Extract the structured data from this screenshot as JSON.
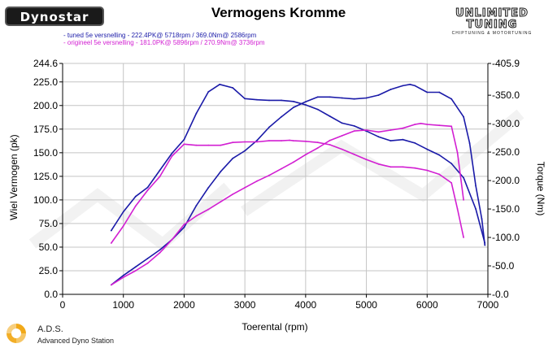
{
  "header": {
    "title": "Vermogens Kromme",
    "dyno_logo": "Dynostar",
    "tuner_logo_line1": "UNLIMITED",
    "tuner_logo_line2": "TUNING",
    "tuner_logo_tagline": "CHIPTUNING & MOTORTUNING"
  },
  "legend": {
    "line1": "- tuned 5e versnelling  - 222.4PK@ 5718rpm / 369.0Nm@ 2586rpm",
    "line2": "- origineel 5e versnelling  - 181.0PK@ 5896rpm / 270.9Nm@ 3736rpm"
  },
  "footer": {
    "brand": "A.D.S.",
    "subtitle": "Advanced Dyno Station"
  },
  "colors": {
    "tuned": "#1a1aa8",
    "original": "#d21fd2",
    "grid": "#c4c4c4",
    "axis": "#000000"
  },
  "chart_data": {
    "type": "line",
    "xlabel": "Toerental (rpm)",
    "ylabel": "Wiel Vermogen (pk)",
    "y2label": "Torque (Nm)",
    "xlim": [
      0,
      7000
    ],
    "ylim": [
      0,
      244.6
    ],
    "y2lim": [
      0,
      405.9
    ],
    "x_ticks": [
      0,
      1000,
      2000,
      3000,
      4000,
      5000,
      6000,
      7000
    ],
    "y_ticks": [
      0.0,
      25.0,
      50.0,
      75.0,
      100.0,
      125.0,
      150.0,
      175.0,
      200.0,
      225.0,
      244.6
    ],
    "y_tick_labels": [
      "0.0",
      "25.0",
      "50.0",
      "75.0",
      "100.0",
      "125.0",
      "150.0",
      "175.0",
      "200.0",
      "225.0",
      "244.6"
    ],
    "y2_ticks": [
      0.0,
      50.0,
      100.0,
      150.0,
      200.0,
      250.0,
      300.0,
      350.0,
      405.9
    ],
    "y2_tick_labels": [
      "-0.0",
      "-50.0",
      "-100.0",
      "-150.0",
      "-200.0",
      "-250.0",
      "-300.0",
      "-350.0",
      "-405.9"
    ],
    "grid": true,
    "series": [
      {
        "name": "tuned 5e versnelling",
        "measure": "power",
        "axis": "left",
        "color": "#1a1aa8",
        "x": [
          800,
          1000,
          1200,
          1400,
          1600,
          1800,
          2000,
          2200,
          2400,
          2600,
          2800,
          3000,
          3200,
          3400,
          3600,
          3800,
          4000,
          4200,
          4400,
          4600,
          4800,
          5000,
          5200,
          5400,
          5600,
          5718,
          5800,
          6000,
          6200,
          6400,
          6600,
          6700,
          6800,
          6900,
          6950
        ],
        "y": [
          10,
          20,
          29,
          38,
          47,
          58,
          71,
          94,
          113,
          130,
          144,
          152,
          163,
          177,
          188,
          198,
          204,
          209,
          209,
          208,
          207,
          208,
          211,
          217,
          221,
          222.4,
          221,
          214,
          214,
          207,
          188,
          160,
          115,
          80,
          52
        ]
      },
      {
        "name": "tuned 5e versnelling",
        "measure": "torque",
        "axis": "right",
        "color": "#1a1aa8",
        "x": [
          800,
          1000,
          1200,
          1400,
          1600,
          1800,
          2000,
          2200,
          2400,
          2586,
          2800,
          3000,
          3200,
          3400,
          3600,
          3800,
          4000,
          4200,
          4400,
          4600,
          4800,
          5000,
          5200,
          5400,
          5600,
          5800,
          6000,
          6200,
          6400,
          6600,
          6800,
          6950
        ],
        "y": [
          112,
          145,
          172,
          188,
          218,
          248,
          272,
          318,
          356,
          369,
          363,
          344,
          342,
          341,
          341,
          339,
          333,
          325,
          313,
          301,
          296,
          287,
          277,
          270,
          272,
          266,
          255,
          245,
          230,
          205,
          150,
          90
        ]
      },
      {
        "name": "origineel 5e versnelling",
        "measure": "power",
        "axis": "left",
        "color": "#d21fd2",
        "x": [
          800,
          1000,
          1200,
          1400,
          1600,
          1800,
          2000,
          2200,
          2400,
          2600,
          2800,
          3000,
          3200,
          3400,
          3600,
          3800,
          4000,
          4200,
          4400,
          4600,
          4800,
          5000,
          5200,
          5400,
          5600,
          5800,
          5896,
          6000,
          6200,
          6400,
          6500,
          6600
        ],
        "y": [
          10,
          18,
          25,
          33,
          44,
          58,
          74,
          83,
          90,
          98,
          106,
          113,
          120,
          126,
          133,
          140,
          148,
          155,
          163,
          168,
          173,
          174,
          172,
          174,
          176,
          180,
          181,
          180,
          179,
          178,
          150,
          100
        ]
      },
      {
        "name": "origineel 5e versnelling",
        "measure": "torque",
        "axis": "right",
        "color": "#d21fd2",
        "x": [
          800,
          1000,
          1200,
          1400,
          1600,
          1800,
          2000,
          2200,
          2400,
          2600,
          2800,
          3000,
          3200,
          3400,
          3600,
          3736,
          3800,
          4000,
          4200,
          4400,
          4600,
          4800,
          5000,
          5200,
          5400,
          5600,
          5800,
          6000,
          6200,
          6400,
          6500,
          6600
        ],
        "y": [
          90,
          120,
          155,
          183,
          207,
          243,
          264,
          262,
          262,
          262,
          267,
          268,
          268,
          270,
          270,
          270.9,
          270,
          269,
          267,
          263,
          255,
          246,
          237,
          229,
          224,
          224,
          222,
          218,
          211,
          196,
          150,
          100
        ]
      }
    ]
  }
}
